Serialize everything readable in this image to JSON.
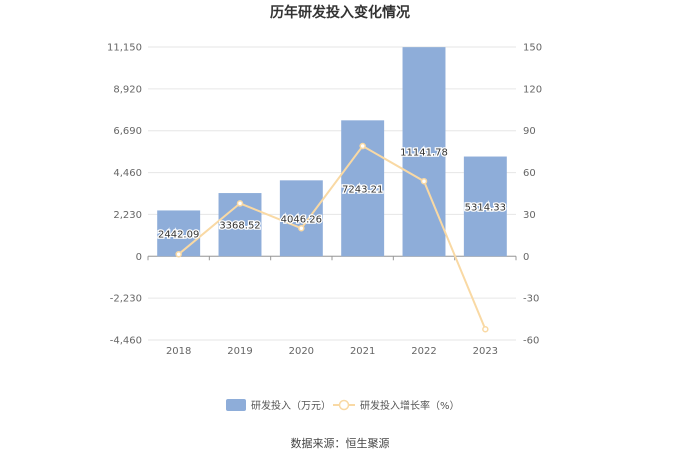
{
  "chart_data": {
    "type": "bar",
    "title": "历年研发投入变化情况",
    "categories": [
      "2018",
      "2019",
      "2020",
      "2021",
      "2022",
      "2023"
    ],
    "series": [
      {
        "name": "研发投入（万元）",
        "type": "bar",
        "axis": "left",
        "color": "#8eadd9",
        "values": [
          2442.09,
          3368.52,
          4046.26,
          7243.21,
          11141.78,
          5314.33
        ],
        "labels": [
          "2442.09",
          "3368.52",
          "4046.26",
          "7243.21",
          "11141.78",
          "5314.33"
        ]
      },
      {
        "name": "研发投入增长率（%）",
        "type": "line",
        "axis": "right",
        "color": "#f9d9a4",
        "values": [
          1.5,
          37.9,
          20.1,
          79.0,
          53.8,
          -52.3
        ]
      }
    ],
    "y_left": {
      "ylim": [
        -4460,
        11150
      ],
      "ticks": [
        11150,
        8920,
        6690,
        4460,
        2230,
        0,
        -2230,
        -4460
      ],
      "tick_labels": [
        "11,150",
        "8,920",
        "6,690",
        "4,460",
        "2,230",
        "0",
        "-2,230",
        "-4,460"
      ]
    },
    "y_right": {
      "ylim": [
        -60,
        150
      ],
      "ticks": [
        150,
        120,
        90,
        60,
        30,
        0,
        -30,
        -60
      ],
      "tick_labels": [
        "150",
        "120",
        "90",
        "60",
        "30",
        "0",
        "-30",
        "-60"
      ]
    },
    "grid": true,
    "legend_position": "bottom"
  },
  "source_text": "数据来源：恒生聚源"
}
